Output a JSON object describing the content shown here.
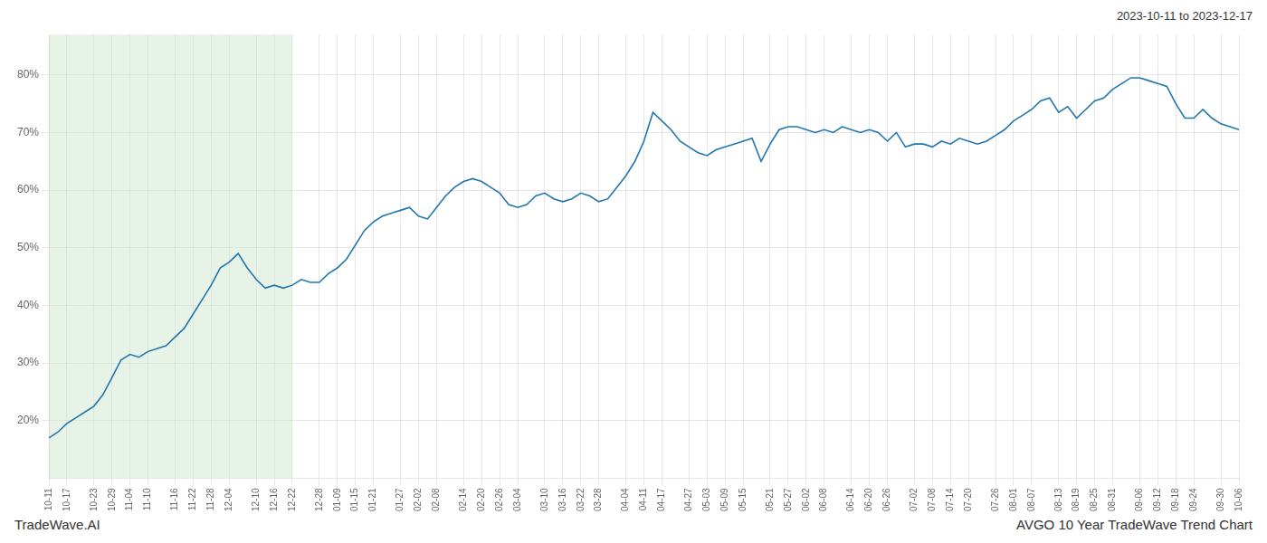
{
  "chart_data": {
    "type": "line",
    "annotations": [
      "2023-10-11 to 2023-12-17",
      "TradeWave.AI",
      "AVGO 10 Year TradeWave Trend Chart"
    ],
    "color": "#2176ae",
    "grid": true,
    "ylim": [
      10,
      87
    ],
    "yticks": [
      {
        "value": 20,
        "label": "20%"
      },
      {
        "value": 30,
        "label": "30%"
      },
      {
        "value": 40,
        "label": "40%"
      },
      {
        "value": 50,
        "label": "50%"
      },
      {
        "value": 60,
        "label": "60%"
      },
      {
        "value": 70,
        "label": "70%"
      },
      {
        "value": 80,
        "label": "80%"
      }
    ],
    "shade": {
      "from": "10-11",
      "to": "12-22",
      "color": "#d6ead6"
    },
    "categories": [
      "10-11",
      null,
      "10-17",
      null,
      null,
      "10-23",
      null,
      "10-29",
      null,
      "11-04",
      null,
      "11-10",
      null,
      null,
      "11-16",
      null,
      "11-22",
      null,
      "11-28",
      null,
      "12-04",
      null,
      null,
      "12-10",
      null,
      "12-16",
      null,
      "12-22",
      null,
      null,
      "12-28",
      null,
      "01-09",
      null,
      "01-15",
      null,
      "01-21",
      null,
      null,
      "01-27",
      null,
      "02-02",
      null,
      "02-08",
      null,
      null,
      "02-14",
      null,
      "02-20",
      null,
      "02-26",
      null,
      "03-04",
      null,
      null,
      "03-10",
      null,
      "03-16",
      null,
      "03-22",
      null,
      "03-28",
      null,
      null,
      "04-04",
      null,
      "04-11",
      null,
      "04-17",
      null,
      null,
      "04-27",
      null,
      "05-03",
      null,
      "05-09",
      null,
      "05-15",
      null,
      null,
      "05-21",
      null,
      "05-27",
      null,
      "06-02",
      null,
      "06-08",
      null,
      null,
      "06-14",
      null,
      "06-20",
      null,
      "06-26",
      null,
      null,
      "07-02",
      null,
      "07-08",
      null,
      "07-14",
      null,
      "07-20",
      null,
      null,
      "07-26",
      null,
      "08-01",
      null,
      "08-07",
      null,
      null,
      "08-13",
      null,
      "08-19",
      null,
      "08-25",
      null,
      "08-31",
      null,
      null,
      "09-06",
      null,
      "09-12",
      null,
      "09-18",
      null,
      "09-24",
      null,
      null,
      "09-30",
      null,
      "10-06"
    ],
    "values": [
      17.0,
      18.0,
      19.5,
      20.5,
      21.5,
      22.5,
      24.5,
      27.5,
      30.5,
      31.5,
      31.0,
      32.0,
      32.5,
      33.0,
      34.5,
      36.0,
      38.5,
      41.0,
      43.5,
      46.5,
      47.5,
      49.0,
      46.5,
      44.5,
      43.0,
      43.5,
      43.0,
      43.5,
      44.5,
      44.0,
      44.0,
      45.5,
      46.5,
      48.0,
      50.5,
      53.0,
      54.5,
      55.5,
      56.0,
      56.5,
      57.0,
      55.5,
      55.0,
      57.0,
      59.0,
      60.5,
      61.5,
      62.0,
      61.5,
      60.5,
      59.5,
      57.5,
      57.0,
      57.5,
      59.0,
      59.5,
      58.5,
      58.0,
      58.5,
      59.5,
      59.0,
      58.0,
      58.5,
      60.5,
      62.5,
      65.0,
      68.5,
      73.5,
      72.0,
      70.5,
      68.5,
      67.5,
      66.5,
      66.0,
      67.0,
      67.5,
      68.0,
      68.5,
      69.0,
      65.0,
      68.0,
      70.5,
      71.0,
      71.0,
      70.5,
      70.0,
      70.5,
      70.0,
      71.0,
      70.5,
      70.0,
      70.5,
      70.0,
      68.5,
      70.0,
      67.5,
      68.0,
      68.0,
      67.5,
      68.5,
      68.0,
      69.0,
      68.5,
      68.0,
      68.5,
      69.5,
      70.5,
      72.0,
      73.0,
      74.0,
      75.5,
      76.0,
      73.5,
      74.5,
      72.5,
      74.0,
      75.5,
      76.0,
      77.5,
      78.5,
      79.5,
      79.5,
      79.0,
      78.5,
      78.0,
      75.0,
      72.5,
      72.5,
      74.0,
      72.5,
      71.5,
      71.0,
      70.5
    ]
  }
}
